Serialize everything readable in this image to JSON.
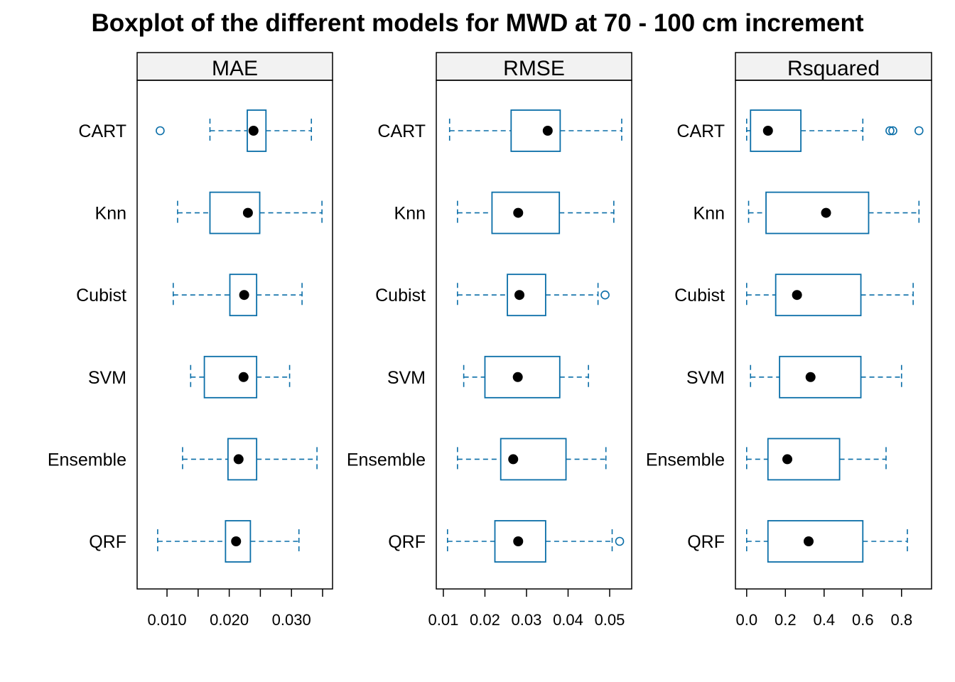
{
  "chart_data": {
    "type": "boxplot",
    "title": "Boxplot of the different models for MWD at 70 - 100 cm increment",
    "categories": [
      "CART",
      "Knn",
      "Cubist",
      "SVM",
      "Ensemble",
      "QRF"
    ],
    "colors": {
      "box": "#0a6ea8",
      "median": "#000000",
      "strip_bg": "#f2f2f2",
      "frame": "#000000"
    },
    "panels": [
      {
        "name": "MAE",
        "xlim": [
          0.0052,
          0.0366
        ],
        "ticks": [
          0.01,
          0.015,
          0.02,
          0.025,
          0.03,
          0.035
        ],
        "tick_labels": [
          "0.010",
          "",
          "0.020",
          "",
          "0.030",
          ""
        ],
        "boxes": [
          {
            "category": "CART",
            "whisker_low": 0.0169,
            "q1": 0.0229,
            "median": 0.0239,
            "q3": 0.0259,
            "whisker_high": 0.0332,
            "outliers": [
              0.0089
            ]
          },
          {
            "category": "Knn",
            "whisker_low": 0.0117,
            "q1": 0.0169,
            "median": 0.023,
            "q3": 0.0249,
            "whisker_high": 0.0349,
            "outliers": []
          },
          {
            "category": "Cubist",
            "whisker_low": 0.011,
            "q1": 0.0201,
            "median": 0.0224,
            "q3": 0.0244,
            "whisker_high": 0.0317,
            "outliers": []
          },
          {
            "category": "SVM",
            "whisker_low": 0.0138,
            "q1": 0.016,
            "median": 0.0223,
            "q3": 0.0244,
            "whisker_high": 0.0297,
            "outliers": []
          },
          {
            "category": "Ensemble",
            "whisker_low": 0.0125,
            "q1": 0.0198,
            "median": 0.0215,
            "q3": 0.0244,
            "whisker_high": 0.0341,
            "outliers": []
          },
          {
            "category": "QRF",
            "whisker_low": 0.0085,
            "q1": 0.0194,
            "median": 0.0211,
            "q3": 0.0234,
            "whisker_high": 0.0312,
            "outliers": []
          }
        ]
      },
      {
        "name": "RMSE",
        "xlim": [
          0.0083,
          0.0553
        ],
        "ticks": [
          0.01,
          0.02,
          0.03,
          0.04,
          0.05
        ],
        "tick_labels": [
          "0.01",
          "0.02",
          "0.03",
          "0.04",
          "0.05"
        ],
        "boxes": [
          {
            "category": "CART",
            "whisker_low": 0.0115,
            "q1": 0.0263,
            "median": 0.0351,
            "q3": 0.0381,
            "whisker_high": 0.0529,
            "outliers": []
          },
          {
            "category": "Knn",
            "whisker_low": 0.0134,
            "q1": 0.0217,
            "median": 0.028,
            "q3": 0.0379,
            "whisker_high": 0.051,
            "outliers": []
          },
          {
            "category": "Cubist",
            "whisker_low": 0.0134,
            "q1": 0.0254,
            "median": 0.0283,
            "q3": 0.0346,
            "whisker_high": 0.0472,
            "outliers": [
              0.0489
            ]
          },
          {
            "category": "SVM",
            "whisker_low": 0.0149,
            "q1": 0.02,
            "median": 0.0279,
            "q3": 0.038,
            "whisker_high": 0.0449,
            "outliers": []
          },
          {
            "category": "Ensemble",
            "whisker_low": 0.0134,
            "q1": 0.0238,
            "median": 0.0268,
            "q3": 0.0395,
            "whisker_high": 0.0491,
            "outliers": []
          },
          {
            "category": "QRF",
            "whisker_low": 0.011,
            "q1": 0.0224,
            "median": 0.028,
            "q3": 0.0346,
            "whisker_high": 0.0506,
            "outliers": [
              0.0524
            ]
          }
        ]
      },
      {
        "name": "Rsquared",
        "xlim": [
          -0.058,
          0.955
        ],
        "ticks": [
          0.0,
          0.2,
          0.4,
          0.6,
          0.8
        ],
        "tick_labels": [
          "0.0",
          "0.2",
          "0.4",
          "0.6",
          "0.8"
        ],
        "boxes": [
          {
            "category": "CART",
            "whisker_low": 0.0,
            "q1": 0.02,
            "median": 0.11,
            "q3": 0.28,
            "whisker_high": 0.6,
            "outliers": [
              0.74,
              0.755,
              0.89
            ]
          },
          {
            "category": "Knn",
            "whisker_low": 0.01,
            "q1": 0.1,
            "median": 0.41,
            "q3": 0.63,
            "whisker_high": 0.89,
            "outliers": []
          },
          {
            "category": "Cubist",
            "whisker_low": 0.0,
            "q1": 0.15,
            "median": 0.26,
            "q3": 0.59,
            "whisker_high": 0.86,
            "outliers": []
          },
          {
            "category": "SVM",
            "whisker_low": 0.02,
            "q1": 0.17,
            "median": 0.33,
            "q3": 0.59,
            "whisker_high": 0.8,
            "outliers": []
          },
          {
            "category": "Ensemble",
            "whisker_low": 0.0,
            "q1": 0.11,
            "median": 0.21,
            "q3": 0.48,
            "whisker_high": 0.72,
            "outliers": []
          },
          {
            "category": "QRF",
            "whisker_low": 0.0,
            "q1": 0.11,
            "median": 0.32,
            "q3": 0.6,
            "whisker_high": 0.83,
            "outliers": []
          }
        ]
      }
    ]
  }
}
